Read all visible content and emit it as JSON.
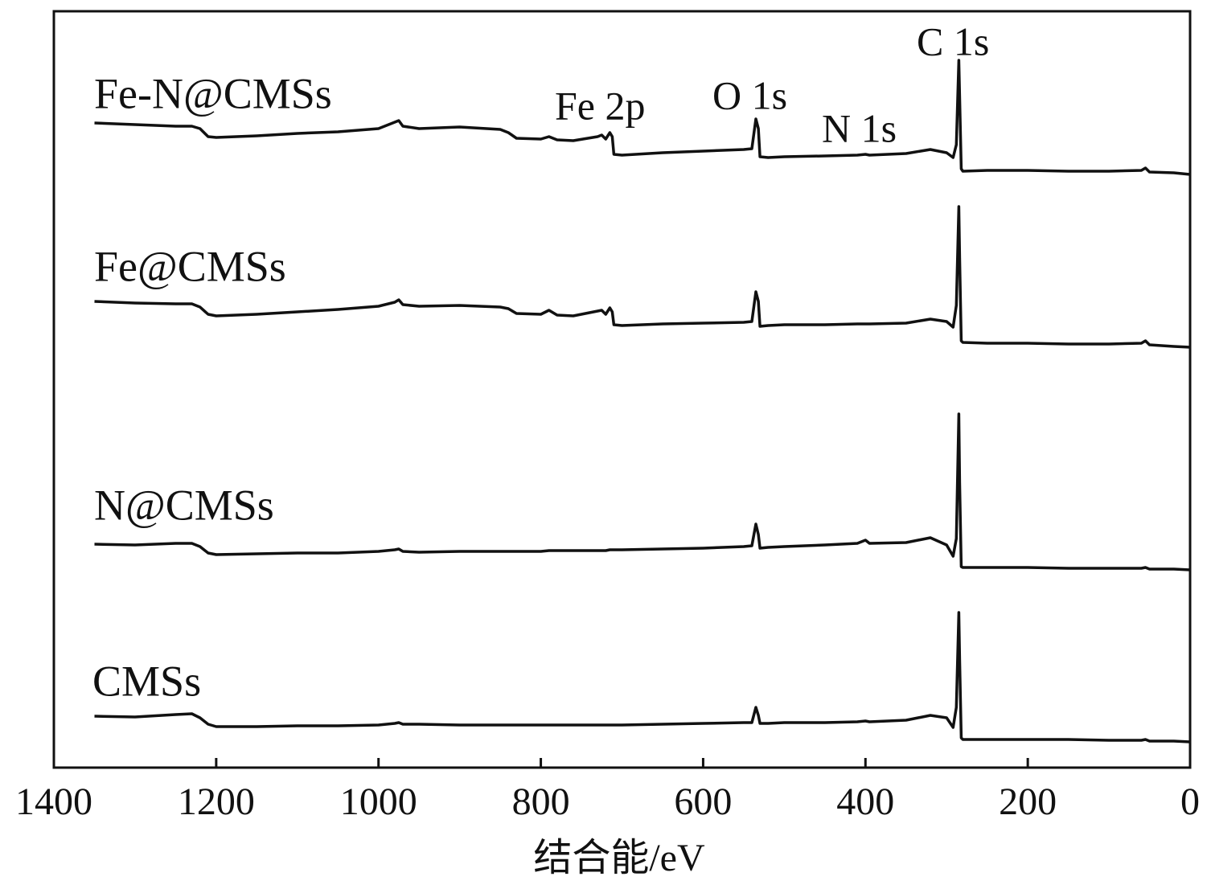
{
  "chart_data": {
    "type": "line",
    "x_label": "结合能/eV",
    "xlim": [
      1400,
      0
    ],
    "xticks": [
      1400,
      1200,
      1000,
      800,
      600,
      400,
      200,
      0
    ],
    "ylim": [
      0,
      941
    ],
    "annotations": [
      "Fe 2p",
      "O 1s",
      "N 1s",
      "C 1s"
    ],
    "x": [
      1350,
      1300,
      1250,
      1230,
      1220,
      1210,
      1200,
      1150,
      1100,
      1050,
      1000,
      980,
      975,
      970,
      950,
      900,
      850,
      840,
      830,
      800,
      790,
      780,
      760,
      730,
      725,
      720,
      715,
      712,
      710,
      700,
      650,
      600,
      550,
      540,
      535,
      532,
      530,
      520,
      500,
      450,
      410,
      400,
      395,
      350,
      320,
      300,
      292,
      288,
      285,
      284,
      282,
      280,
      250,
      200,
      150,
      100,
      60,
      55,
      50,
      20,
      0
    ],
    "series": [
      {
        "name": "Fe-N@CMSs",
        "color": "#111111",
        "values": [
          802,
          800,
          798,
          798,
          795,
          785,
          784,
          786,
          789,
          791,
          795,
          803,
          805,
          798,
          795,
          797,
          794,
          790,
          783,
          782,
          785,
          781,
          780,
          785,
          787,
          782,
          790,
          785,
          763,
          762,
          765,
          767,
          769,
          770,
          807,
          795,
          760,
          759,
          760,
          761,
          762,
          763,
          762,
          764,
          769,
          765,
          759,
          775,
          880,
          835,
          745,
          742,
          743,
          743,
          742,
          742,
          743,
          746,
          741,
          740,
          738
        ]
      },
      {
        "name": "Fe@CMSs",
        "color": "#111111",
        "values": [
          580,
          578,
          577,
          577,
          573,
          564,
          562,
          564,
          567,
          570,
          574,
          579,
          582,
          576,
          574,
          575,
          573,
          571,
          565,
          564,
          569,
          563,
          562,
          568,
          569,
          564,
          572,
          567,
          551,
          550,
          552,
          553,
          554,
          555,
          592,
          580,
          549,
          550,
          551,
          551,
          552,
          552,
          552,
          553,
          558,
          555,
          548,
          575,
          698,
          635,
          531,
          529,
          528,
          528,
          527,
          527,
          528,
          531,
          526,
          524,
          523
        ]
      },
      {
        "name": "N@CMSs",
        "color": "#111111",
        "values": [
          278,
          277,
          279,
          279,
          275,
          267,
          265,
          266,
          267,
          267,
          269,
          271,
          272,
          269,
          268,
          269,
          269,
          269,
          269,
          269,
          270,
          270,
          270,
          270,
          270,
          270,
          271,
          271,
          271,
          271,
          272,
          273,
          275,
          276,
          303,
          290,
          273,
          274,
          275,
          277,
          279,
          283,
          279,
          280,
          286,
          277,
          263,
          285,
          440,
          355,
          250,
          249,
          249,
          249,
          248,
          248,
          248,
          249,
          247,
          247,
          246
        ]
      },
      {
        "name": "CMSs",
        "color": "#111111",
        "values": [
          64,
          63,
          66,
          67,
          62,
          54,
          51,
          51,
          52,
          52,
          53,
          55,
          56,
          54,
          54,
          53,
          53,
          53,
          53,
          53,
          53,
          53,
          53,
          53,
          53,
          53,
          53,
          53,
          53,
          53,
          54,
          55,
          56,
          56,
          75,
          65,
          55,
          55,
          56,
          56,
          57,
          58,
          57,
          59,
          65,
          62,
          50,
          75,
          193,
          135,
          37,
          35,
          35,
          35,
          35,
          34,
          34,
          35,
          33,
          33,
          32
        ]
      }
    ]
  }
}
